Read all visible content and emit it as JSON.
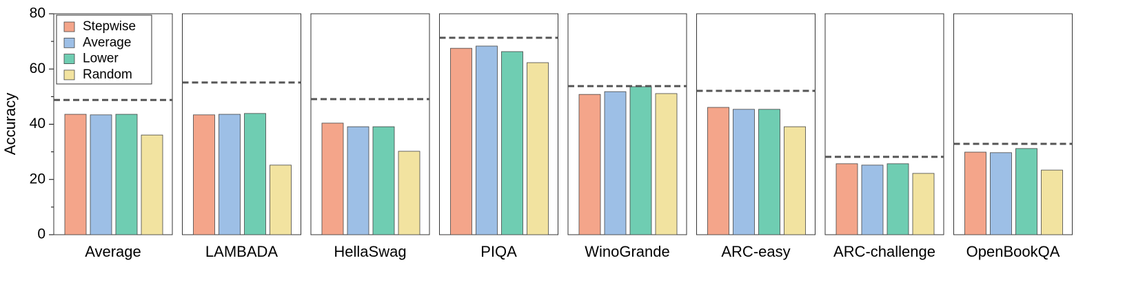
{
  "chart_data": {
    "type": "bar",
    "ylabel": "Accuracy",
    "categories": [
      "Average",
      "LAMBADA",
      "HellaSwag",
      "PIQA",
      "WinoGrande",
      "ARC-easy",
      "ARC-challenge",
      "OpenBookQA"
    ],
    "series": [
      {
        "name": "Stepwise",
        "color": "#f4a58a",
        "values": [
          43.6,
          43.4,
          40.4,
          67.5,
          50.8,
          46.1,
          25.7,
          29.9
        ]
      },
      {
        "name": "Average",
        "color": "#9dbfe6",
        "values": [
          43.4,
          43.6,
          39.1,
          68.3,
          51.8,
          45.4,
          25.2,
          29.7
        ]
      },
      {
        "name": "Lower",
        "color": "#6fcdb2",
        "values": [
          43.6,
          43.9,
          39.1,
          66.3,
          53.6,
          45.4,
          25.7,
          31.2
        ]
      },
      {
        "name": "Random",
        "color": "#f2e3a0",
        "values": [
          36.1,
          25.2,
          30.2,
          62.3,
          51.1,
          39.1,
          22.2,
          23.4
        ]
      }
    ],
    "reference_values": [
      48.8,
      55.1,
      49.1,
      71.3,
      53.8,
      52.1,
      28.2,
      32.9
    ],
    "reference_color": "#555555",
    "ylim": [
      0,
      80
    ],
    "yticks": [
      0,
      20,
      40,
      60,
      80
    ],
    "minor_yticks": [
      10,
      30,
      50,
      70
    ],
    "legend": "upper left"
  }
}
